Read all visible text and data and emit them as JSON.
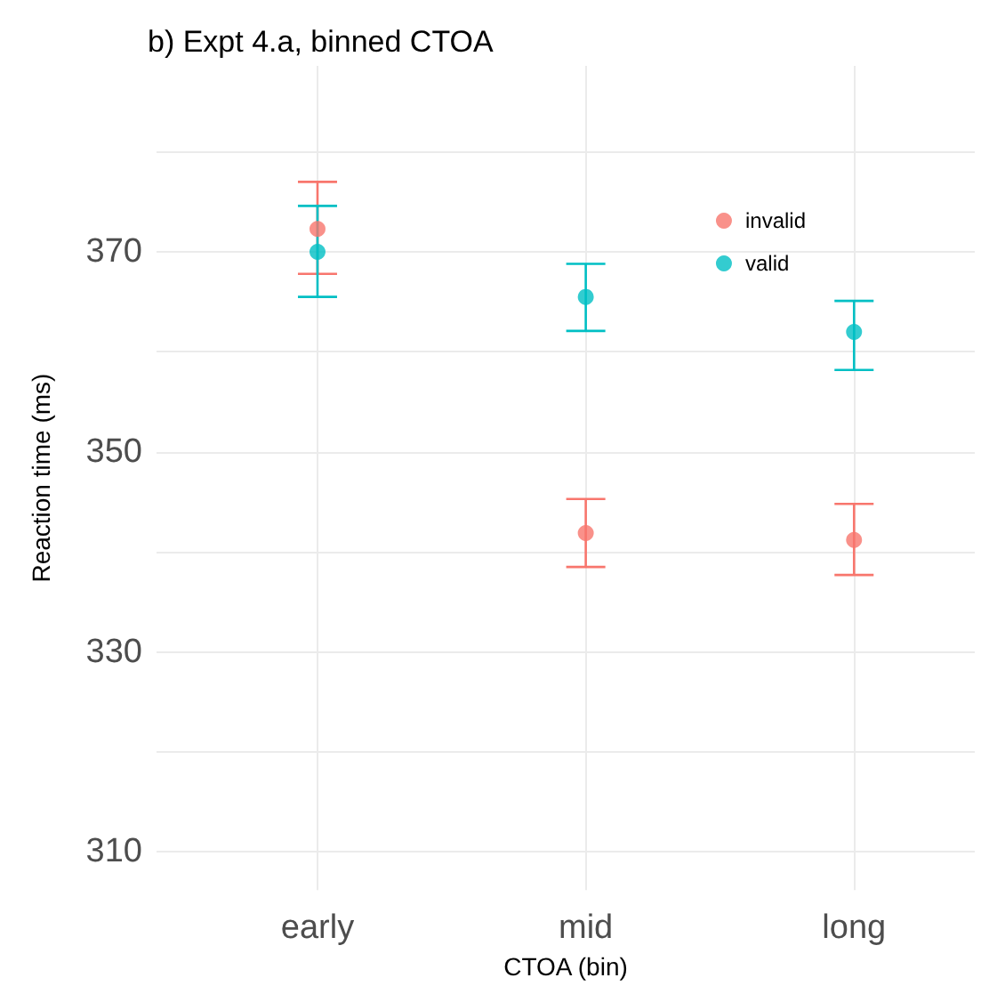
{
  "chart_data": {
    "type": "scatter",
    "title": "b) Expt 4.a, binned CTOA",
    "xlabel": "CTOA (bin)",
    "ylabel": "Reaction time (ms)",
    "categories": [
      "early",
      "mid",
      "long"
    ],
    "series": [
      {
        "name": "invalid",
        "color": "#f8766d",
        "values": [
          372.3,
          341.9,
          341.2
        ],
        "errors": [
          [
            367.8,
            377.0
          ],
          [
            338.5,
            345.3
          ],
          [
            337.7,
            344.8
          ]
        ]
      },
      {
        "name": "valid",
        "color": "#00bfc4",
        "values": [
          370.0,
          365.5,
          362.0
        ],
        "errors": [
          [
            365.5,
            374.6
          ],
          [
            362.1,
            368.8
          ],
          [
            358.2,
            365.1
          ]
        ]
      }
    ],
    "ylim": [
      306.2,
      388.6
    ],
    "yticks": [
      310,
      {
        "value": 320,
        "label": null
      },
      330,
      {
        "value": 340,
        "label": null
      },
      350,
      {
        "value": 360,
        "label": null
      },
      370,
      {
        "value": 380,
        "label": null
      }
    ],
    "grid": true,
    "legend": "top right",
    "marker": "circle"
  }
}
